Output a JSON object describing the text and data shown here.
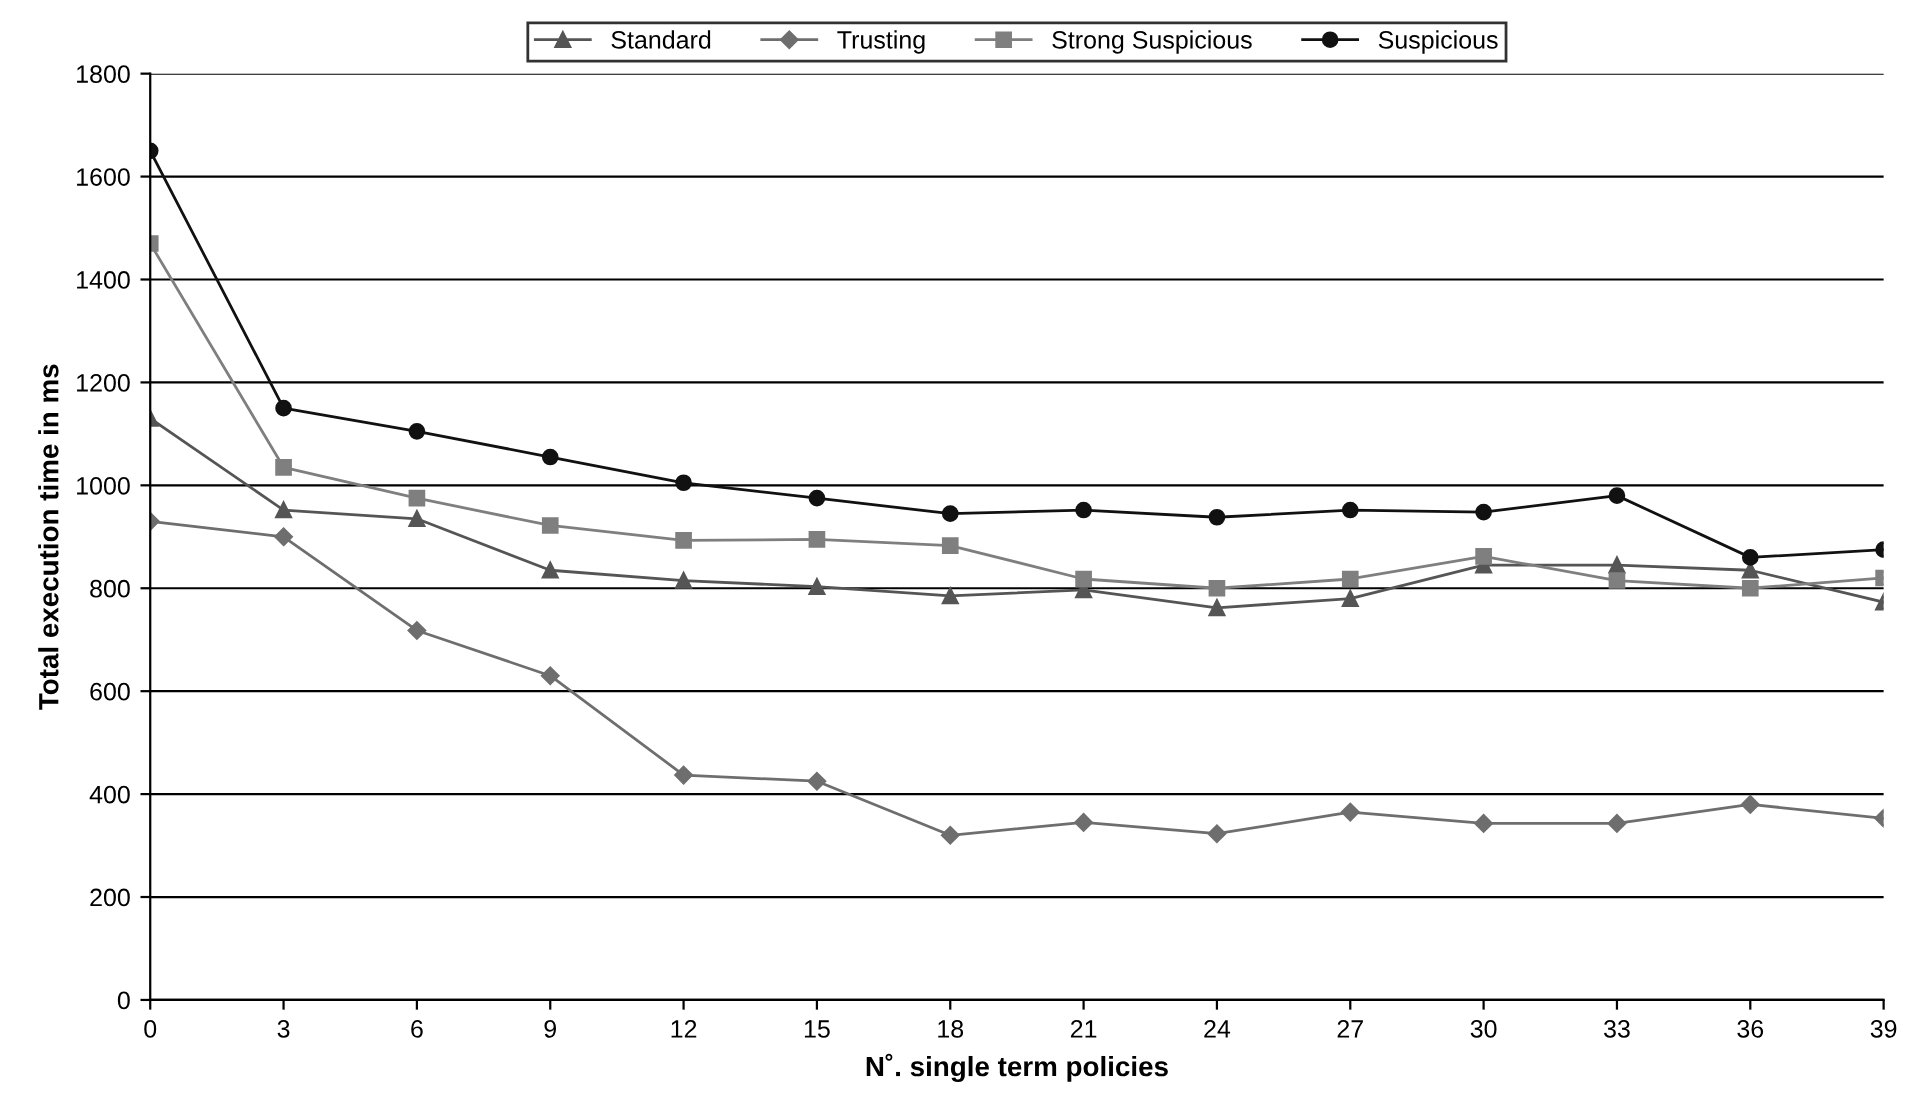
{
  "chart_data": {
    "type": "line",
    "xlabel": "N˚. single term policies",
    "ylabel": "Total execution time in ms",
    "x": [
      0,
      3,
      6,
      9,
      12,
      15,
      18,
      21,
      24,
      27,
      30,
      33,
      36,
      39
    ],
    "series": [
      {
        "name": "Standard",
        "color": "#555555",
        "marker": "triangle",
        "values": [
          1130,
          952,
          935,
          835,
          815,
          803,
          785,
          797,
          762,
          780,
          845,
          845,
          835,
          773
        ]
      },
      {
        "name": "Trusting",
        "color": "#6e6e6e",
        "marker": "diamond",
        "values": [
          930,
          900,
          718,
          630,
          437,
          425,
          320,
          345,
          323,
          365,
          343,
          343,
          380,
          353
        ]
      },
      {
        "name": "Strong Suspicious",
        "color": "#7f7f7f",
        "marker": "square",
        "values": [
          1470,
          1035,
          975,
          922,
          893,
          895,
          883,
          818,
          800,
          818,
          862,
          815,
          800,
          820
        ]
      },
      {
        "name": "Suspicious",
        "color": "#111111",
        "marker": "circle",
        "values": [
          1650,
          1150,
          1105,
          1055,
          1005,
          975,
          945,
          952,
          938,
          952,
          948,
          980,
          860,
          875
        ]
      }
    ],
    "xlim": [
      0,
      39
    ],
    "xticks": [
      0,
      3,
      6,
      9,
      12,
      15,
      18,
      21,
      24,
      27,
      30,
      33,
      36,
      39
    ],
    "ylim": [
      0,
      1800
    ],
    "yticks": [
      0,
      200,
      400,
      600,
      800,
      1000,
      1200,
      1400,
      1600,
      1800
    ],
    "grid": "y",
    "legend": "top",
    "line_style": "solid"
  }
}
